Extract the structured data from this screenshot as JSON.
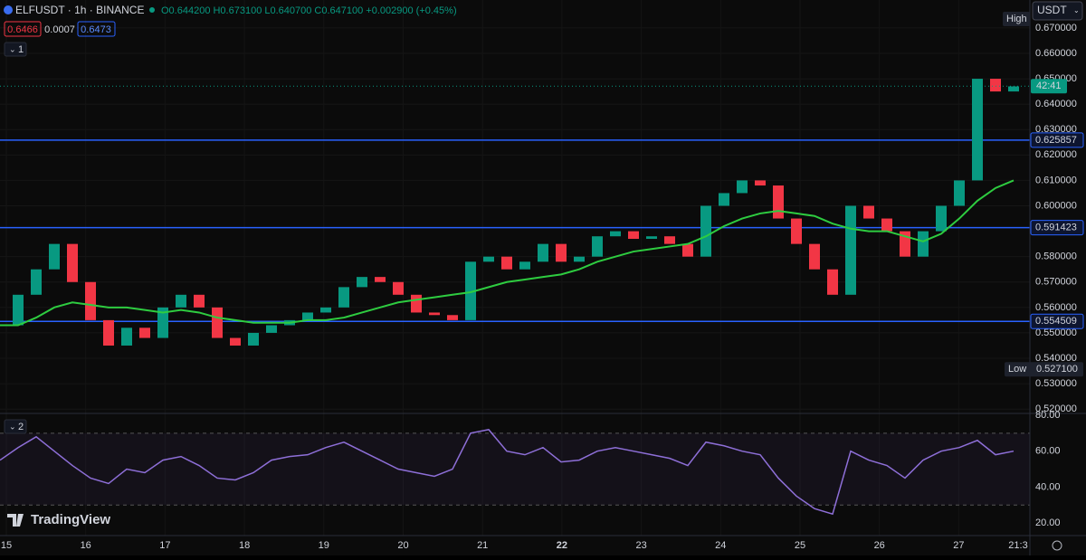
{
  "header": {
    "symbol": "ELFUSDT · 1h · BINANCE",
    "ohlc": "O0.644200 H0.673100 L0.640700 C0.647100 +0.002900 (+0.45%)",
    "bid": "0.6466",
    "spread": "0.0007",
    "ask": "0.6473",
    "indicator_1": "1",
    "indicator_2": "2",
    "currency": "USDT",
    "brand": "TradingView"
  },
  "chart_data": {
    "type": "candlestick",
    "closes": [
      0.553,
      0.565,
      0.575,
      0.585,
      0.57,
      0.555,
      0.545,
      0.552,
      0.548,
      0.56,
      0.565,
      0.56,
      0.548,
      0.545,
      0.55,
      0.553,
      0.555,
      0.558,
      0.56,
      0.568,
      0.572,
      0.57,
      0.565,
      0.558,
      0.557,
      0.555,
      0.578,
      0.58,
      0.575,
      0.578,
      0.585,
      0.578,
      0.58,
      0.588,
      0.59,
      0.587,
      0.588,
      0.585,
      0.58,
      0.6,
      0.605,
      0.61,
      0.608,
      0.595,
      0.585,
      0.575,
      0.565,
      0.6,
      0.595,
      0.59,
      0.58,
      0.59,
      0.6,
      0.61,
      0.65,
      0.645,
      0.647
    ],
    "ma": [
      0.553,
      0.553,
      0.556,
      0.56,
      0.562,
      0.561,
      0.56,
      0.56,
      0.559,
      0.558,
      0.559,
      0.558,
      0.556,
      0.555,
      0.554,
      0.554,
      0.554,
      0.555,
      0.555,
      0.556,
      0.558,
      0.56,
      0.562,
      0.563,
      0.564,
      0.565,
      0.566,
      0.568,
      0.57,
      0.571,
      0.572,
      0.573,
      0.575,
      0.578,
      0.58,
      0.582,
      0.583,
      0.584,
      0.585,
      0.588,
      0.592,
      0.595,
      0.597,
      0.598,
      0.597,
      0.596,
      0.593,
      0.591,
      0.59,
      0.59,
      0.588,
      0.586,
      0.589,
      0.595,
      0.602,
      0.607,
      0.61
    ],
    "ylim": [
      0.519,
      0.681
    ],
    "yticks": [
      {
        "value": 0.67,
        "label": "0.670000"
      },
      {
        "value": 0.66,
        "label": "0.660000"
      },
      {
        "value": 0.65,
        "label": "0.650000"
      },
      {
        "value": 0.64,
        "label": "0.640000"
      },
      {
        "value": 0.63,
        "label": "0.630000"
      },
      {
        "value": 0.62,
        "label": "0.620000"
      },
      {
        "value": 0.61,
        "label": "0.610000"
      },
      {
        "value": 0.6,
        "label": "0.600000"
      },
      {
        "value": 0.58,
        "label": "0.580000"
      },
      {
        "value": 0.57,
        "label": "0.570000"
      },
      {
        "value": 0.56,
        "label": "0.560000"
      },
      {
        "value": 0.55,
        "label": "0.550000"
      },
      {
        "value": 0.54,
        "label": "0.540000"
      },
      {
        "value": 0.53,
        "label": "0.530000"
      },
      {
        "value": 0.52,
        "label": "0.520000"
      }
    ],
    "levels": [
      {
        "value": 0.625857,
        "label": "0.625857"
      },
      {
        "value": 0.591423,
        "label": "0.591423"
      },
      {
        "value": 0.554509,
        "label": "0.554509"
      }
    ],
    "last_price": 0.6471,
    "countdown": "42:41",
    "high_label": "High",
    "low": {
      "value": 0.5271,
      "label": "0.527100",
      "name": "Low"
    },
    "x_labels": [
      "15",
      "16",
      "17",
      "18",
      "19",
      "20",
      "21",
      "22",
      "23",
      "24",
      "25",
      "26",
      "27"
    ],
    "x_last": "21:3",
    "colors": {
      "up": "#089981",
      "down": "#f23645",
      "ma": "#2ecc40",
      "rsi": "#8e6fd8",
      "level": "#2962ff"
    }
  },
  "rsi": {
    "values": [
      55,
      62,
      68,
      60,
      52,
      45,
      42,
      50,
      48,
      55,
      57,
      52,
      45,
      44,
      48,
      55,
      57,
      58,
      62,
      65,
      60,
      55,
      50,
      48,
      46,
      50,
      70,
      72,
      60,
      58,
      62,
      54,
      55,
      60,
      62,
      60,
      58,
      56,
      52,
      65,
      63,
      60,
      58,
      45,
      35,
      28,
      25,
      60,
      55,
      52,
      45,
      55,
      60,
      62,
      66,
      58,
      60
    ],
    "ylim": [
      14,
      82
    ],
    "yticks": [
      {
        "value": 80,
        "label": "80.00"
      },
      {
        "value": 60,
        "label": "60.00"
      },
      {
        "value": 40,
        "label": "40.00"
      },
      {
        "value": 20,
        "label": "20.00"
      }
    ],
    "bands": [
      70,
      30
    ]
  }
}
